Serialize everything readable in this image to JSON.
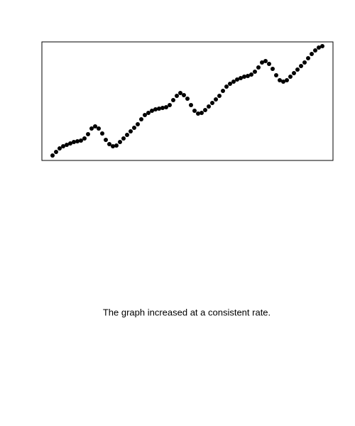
{
  "chart_data": {
    "type": "scatter",
    "caption": "The graph increased at a consistent rate.",
    "x": [
      15,
      20,
      25,
      30,
      35,
      40,
      45,
      50,
      55,
      60,
      65,
      70,
      75,
      80,
      85,
      90,
      95,
      100,
      105,
      110,
      115,
      120,
      125,
      130,
      135,
      140,
      145,
      150,
      155,
      160,
      165,
      170,
      175,
      180,
      185,
      190,
      195,
      200,
      205,
      210,
      215,
      220,
      225,
      230,
      235,
      240,
      245,
      250,
      255,
      260,
      265,
      270,
      275,
      280,
      285,
      290,
      295,
      300,
      305,
      310,
      315,
      320,
      325,
      330,
      335,
      340,
      345,
      350,
      355,
      360,
      365,
      370,
      375,
      380,
      385,
      390,
      395
    ],
    "values": [
      7,
      12,
      17,
      20,
      22,
      24,
      26,
      27,
      28,
      31,
      37,
      45,
      48,
      45,
      38,
      29,
      23,
      20,
      21,
      26,
      31,
      36,
      41,
      46,
      51,
      58,
      64,
      67,
      70,
      72,
      73,
      74,
      75,
      78,
      85,
      91,
      95,
      92,
      87,
      78,
      70,
      66,
      67,
      71,
      76,
      81,
      86,
      91,
      98,
      104,
      108,
      111,
      114,
      116,
      118,
      119,
      121,
      125,
      131,
      138,
      140,
      136,
      129,
      120,
      113,
      111,
      113,
      118,
      123,
      128,
      133,
      138,
      144,
      150,
      155,
      159,
      161
    ],
    "color": "#000000",
    "xlim": [
      0,
      410
    ],
    "ylim": [
      0,
      167
    ]
  }
}
